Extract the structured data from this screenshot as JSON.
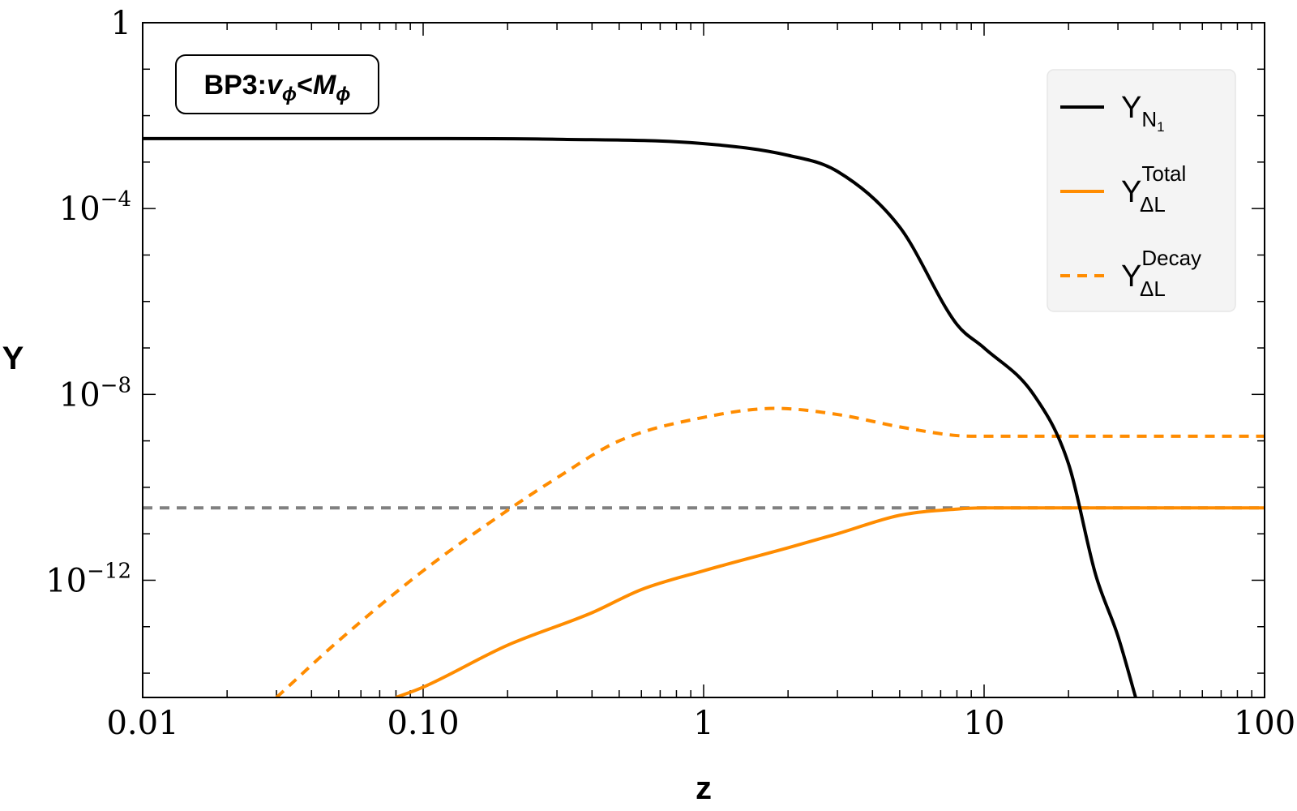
{
  "chart_data": {
    "type": "line",
    "title": "",
    "xlabel": "z",
    "ylabel": "Y",
    "xscale": "log",
    "yscale": "log",
    "xlim": [
      0.01,
      100
    ],
    "ylim": [
      3e-15,
      1
    ],
    "x_tick_labels": [
      "0.01",
      "0.10",
      "1",
      "10",
      "100"
    ],
    "x_tick_values": [
      0.01,
      0.1,
      1,
      10,
      100
    ],
    "y_tick_values": [
      1,
      0.0001,
      1e-08,
      1e-12
    ],
    "y_tick_labels": [
      {
        "text": "1",
        "exp": ""
      },
      {
        "text": "10",
        "exp": "−4"
      },
      {
        "text": "10",
        "exp": "−8"
      },
      {
        "text": "10",
        "exp": "−12"
      }
    ],
    "annotation": {
      "prefix": "BP3:",
      "v": "v",
      "v_sub": "ϕ",
      "lt": "<",
      "m": "M",
      "m_sub": "ϕ"
    },
    "legend": {
      "position": "top-right",
      "entries": [
        {
          "main": "Y",
          "sub": "N",
          "subsub": "1",
          "sup": ""
        },
        {
          "main": "Y",
          "sub": "ΔL",
          "subsub": "",
          "sup": "Total"
        },
        {
          "main": "Y",
          "sub": "ΔL",
          "subsub": "",
          "sup": "Decay"
        }
      ]
    },
    "grid": false,
    "series": [
      {
        "id": "Y_N1",
        "color": "#000000",
        "dash": "solid",
        "x": [
          0.01,
          0.1,
          0.3,
          1,
          2,
          3,
          5,
          8,
          10,
          15,
          20,
          25,
          30,
          35
        ],
        "y": [
          0.0032,
          0.0032,
          0.0031,
          0.0025,
          0.0014,
          0.00063,
          4e-05,
          3.2e-07,
          1e-07,
          1e-08,
          3.2e-10,
          1.3e-12,
          6.3e-14,
          2.5e-15
        ]
      },
      {
        "id": "Y_DL_Total",
        "color": "#ff8c00",
        "dash": "solid",
        "x": [
          0.08,
          0.1,
          0.2,
          0.4,
          0.6,
          1,
          2,
          3,
          5,
          8,
          10,
          20,
          100
        ],
        "y": [
          3e-15,
          5e-15,
          4e-14,
          2e-13,
          6.3e-13,
          1.6e-12,
          5e-12,
          1e-11,
          2.5e-11,
          3.4e-11,
          3.6e-11,
          3.6e-11,
          3.6e-11
        ]
      },
      {
        "id": "Y_DL_Decay",
        "color": "#ff8c00",
        "dash": "dashed",
        "x": [
          0.03,
          0.05,
          0.1,
          0.2,
          0.3,
          0.5,
          1,
          1.8,
          3,
          5,
          8,
          10,
          20,
          100
        ],
        "y": [
          3e-15,
          5e-14,
          1.6e-12,
          3.2e-11,
          1.6e-10,
          1e-09,
          3.2e-09,
          5e-09,
          3.7e-09,
          2e-09,
          1.3e-09,
          1.26e-09,
          1.26e-09,
          1.26e-09
        ]
      },
      {
        "id": "reference",
        "color": "#808080",
        "dash": "dashed",
        "x": [
          0.01,
          100
        ],
        "y": [
          3.6e-11,
          3.6e-11
        ]
      }
    ]
  }
}
